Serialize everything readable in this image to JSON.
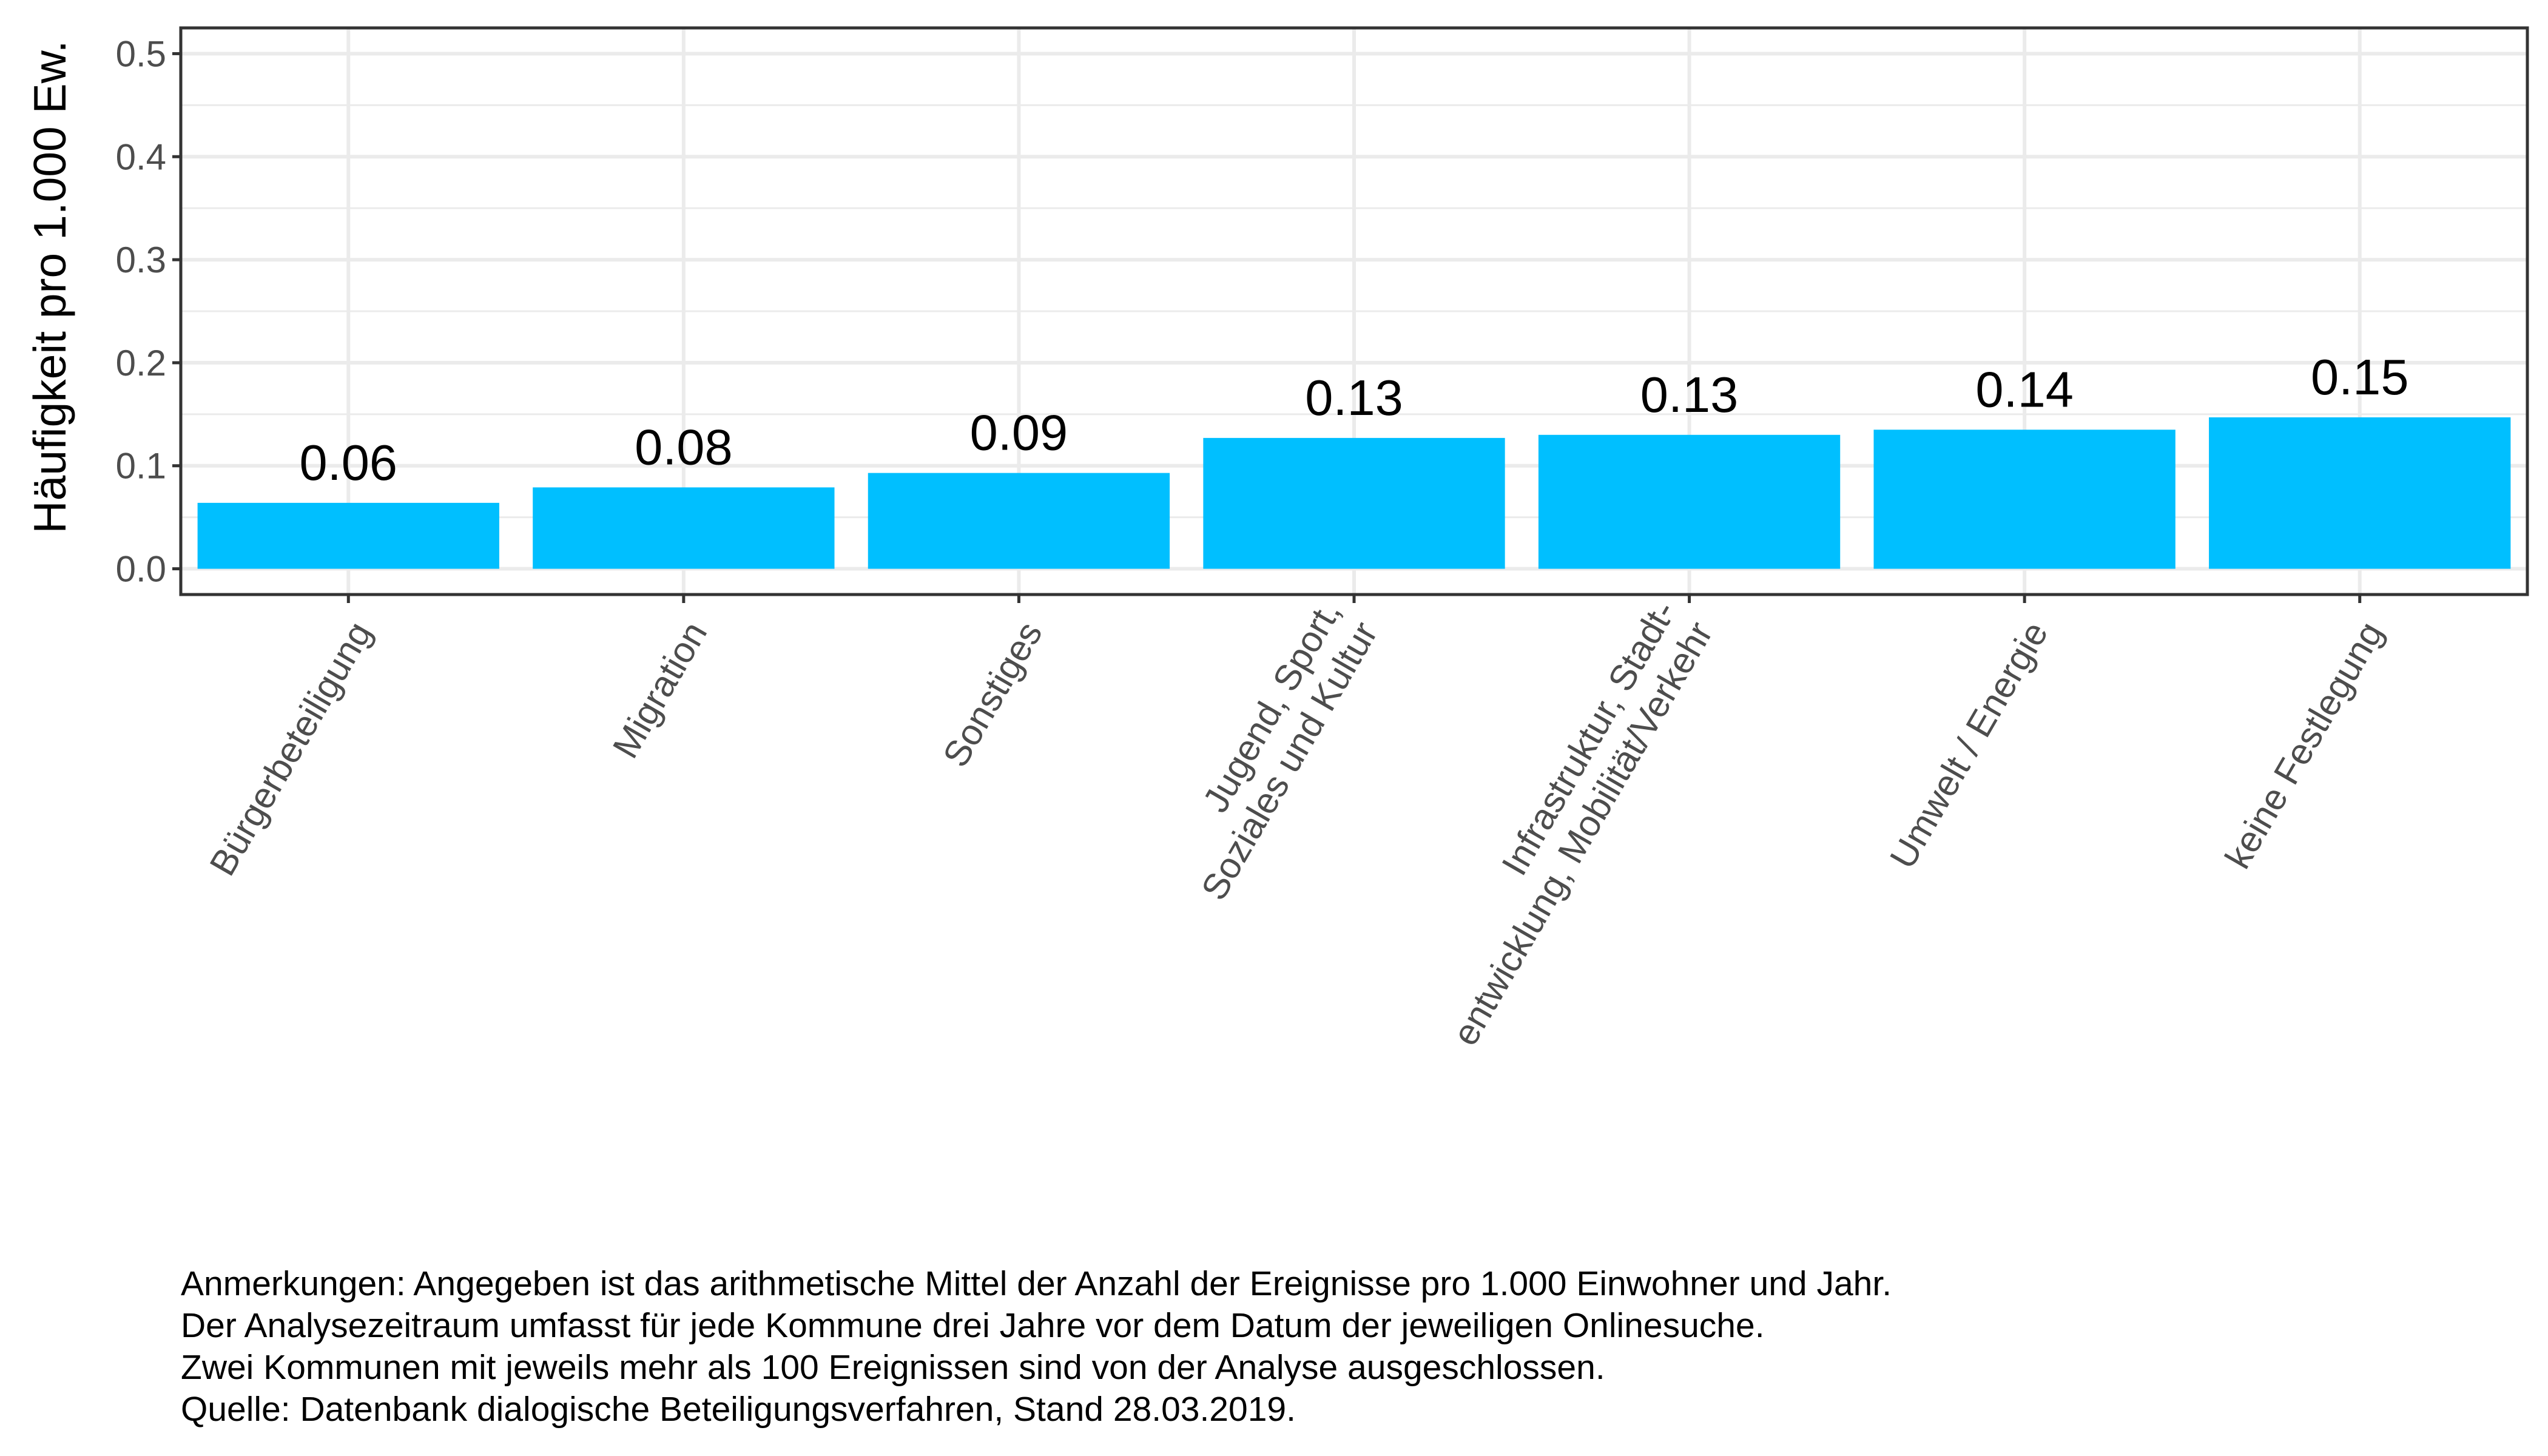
{
  "chart_data": {
    "type": "bar",
    "title": "",
    "xlabel": "",
    "ylabel": "Häufigkeit pro 1.000 Ew.",
    "categories": [
      [
        "Bürgerbeteiligung"
      ],
      [
        "Migration"
      ],
      [
        "Sonstiges"
      ],
      [
        "Jugend, Sport,",
        "Soziales und Kultur"
      ],
      [
        "Infrastruktur, Stadt-",
        "entwicklung, Mobilität/Verkehr"
      ],
      [
        "Umwelt / Energie"
      ],
      [
        "keine Festlegung"
      ]
    ],
    "values": [
      0.064,
      0.079,
      0.093,
      0.127,
      0.13,
      0.135,
      0.147
    ],
    "value_labels": [
      "0.06",
      "0.08",
      "0.09",
      "0.13",
      "0.13",
      "0.14",
      "0.15"
    ],
    "ylim": [
      -0.025,
      0.525
    ],
    "y_ticks": [
      0.0,
      0.1,
      0.2,
      0.3,
      0.4,
      0.5
    ],
    "y_tick_labels": [
      "0.0",
      "0.1",
      "0.2",
      "0.3",
      "0.4",
      "0.5"
    ],
    "bar_color": "#00BFFF",
    "grid": true,
    "legend": "none"
  },
  "notes": {
    "lines": [
      "Anmerkungen: Angegeben ist das arithmetische Mittel der Anzahl der Ereignisse pro 1.000 Einwohner und Jahr.",
      "Der Analysezeitraum umfasst für jede Kommune drei Jahre vor dem Datum der jeweiligen Onlinesuche.",
      "Zwei Kommunen mit jeweils mehr als 100 Ereignissen sind von der Analyse ausgeschlossen.",
      "Quelle: Datenbank dialogische Beteiligungsverfahren, Stand 28.03.2019."
    ]
  }
}
